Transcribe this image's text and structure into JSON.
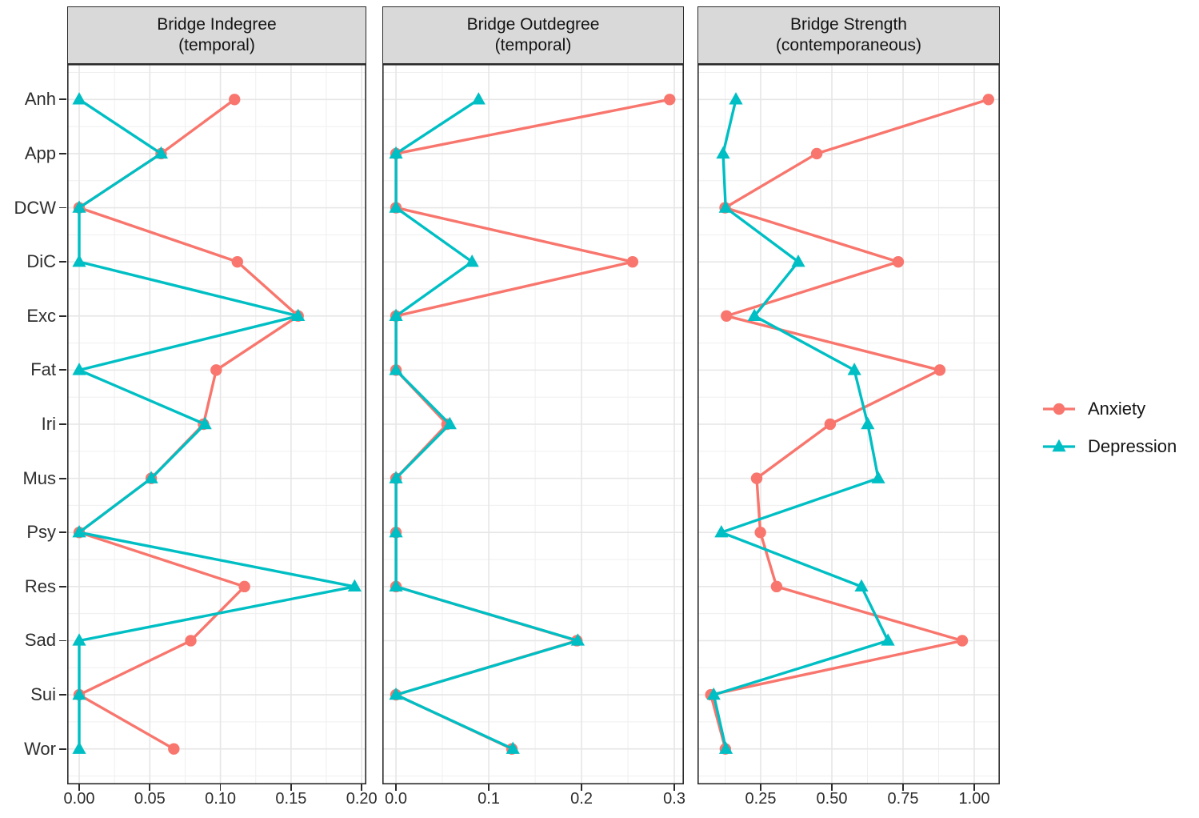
{
  "chart_data": {
    "type": "line",
    "subtype": "faceted-dot-line-plot",
    "orientation": "horizontal",
    "grid": true,
    "background": "#ffffff",
    "categories": [
      "Anh",
      "App",
      "DCW",
      "DiC",
      "Exc",
      "Fat",
      "Iri",
      "Mus",
      "Psy",
      "Res",
      "Sad",
      "Sui",
      "Wor"
    ],
    "facets": [
      {
        "title_lines": [
          "Bridge Indegree",
          "(temporal)"
        ],
        "x_axis": {
          "min": -0.0085,
          "max": 0.2033,
          "major_ticks": [
            {
              "value": 0.0,
              "label": "0.00"
            },
            {
              "value": 0.05,
              "label": "0.05"
            },
            {
              "value": 0.1,
              "label": "0.10"
            },
            {
              "value": 0.15,
              "label": "0.15"
            },
            {
              "value": 0.2,
              "label": "0.20"
            }
          ],
          "minor_tick_values": [
            0.025,
            0.075,
            0.125,
            0.175
          ]
        },
        "series": [
          {
            "name": "Anxiety",
            "values": [
              0.11,
              0.058,
              0,
              0.112,
              0.155,
              0.097,
              0.088,
              0.051,
              0,
              0.117,
              0.079,
              0,
              0.067
            ]
          },
          {
            "name": "Depression",
            "values": [
              0,
              0.058,
              0,
              0,
              0.155,
              0,
              0.089,
              0.051,
              0,
              0.195,
              0,
              0,
              0
            ]
          }
        ]
      },
      {
        "title_lines": [
          "Bridge Outdegree",
          "(temporal)"
        ],
        "x_axis": {
          "min": -0.0147,
          "max": 0.3103,
          "major_ticks": [
            {
              "value": 0.0,
              "label": "0.0"
            },
            {
              "value": 0.1,
              "label": "0.1"
            },
            {
              "value": 0.2,
              "label": "0.2"
            },
            {
              "value": 0.3,
              "label": "0.3"
            }
          ],
          "minor_tick_values": [
            0.05,
            0.15,
            0.25
          ]
        },
        "series": [
          {
            "name": "Anxiety",
            "values": [
              0.295,
              0,
              0,
              0.255,
              0,
              0,
              0.055,
              0,
              0,
              0,
              0.195,
              0,
              0.125
            ]
          },
          {
            "name": "Depression",
            "values": [
              0.089,
              0,
              0,
              0.082,
              0,
              0,
              0.058,
              0,
              0,
              0,
              0.196,
              0,
              0.126
            ]
          }
        ]
      },
      {
        "title_lines": [
          "Bridge Strength",
          "(contemporaneous)"
        ],
        "x_axis": {
          "min": 0.0281,
          "max": 1.0899,
          "major_ticks": [
            {
              "value": 0.25,
              "label": "0.25"
            },
            {
              "value": 0.5,
              "label": "0.50"
            },
            {
              "value": 0.75,
              "label": "0.75"
            },
            {
              "value": 1.0,
              "label": "1.00"
            }
          ],
          "minor_tick_values": [
            0.125,
            0.375,
            0.625,
            0.875
          ]
        },
        "series": [
          {
            "name": "Anxiety",
            "values": [
              1.05,
              0.447,
              0.125,
              0.733,
              0.13,
              0.879,
              0.494,
              0.236,
              0.249,
              0.306,
              0.958,
              0.075,
              0.126
            ]
          },
          {
            "name": "Depression",
            "values": [
              0.163,
              0.118,
              0.127,
              0.382,
              0.228,
              0.579,
              0.626,
              0.663,
              0.112,
              0.604,
              0.697,
              0.085,
              0.128
            ]
          }
        ]
      }
    ],
    "legend": {
      "position": "right",
      "items": [
        {
          "label": "Anxiety",
          "color": "#F8766D",
          "marker": "circle"
        },
        {
          "label": "Depression",
          "color": "#00BFC4",
          "marker": "triangle"
        }
      ]
    },
    "style": {
      "strip_background": "#d9d9d9",
      "panel_border_color": "#2a2a2a",
      "grid_major_color": "#e6e6e6",
      "grid_minor_color": "#efefef",
      "axis_text_color": "#2e2e2e",
      "anxiety_color": "#F8766D",
      "depression_color": "#00BFC4"
    }
  }
}
